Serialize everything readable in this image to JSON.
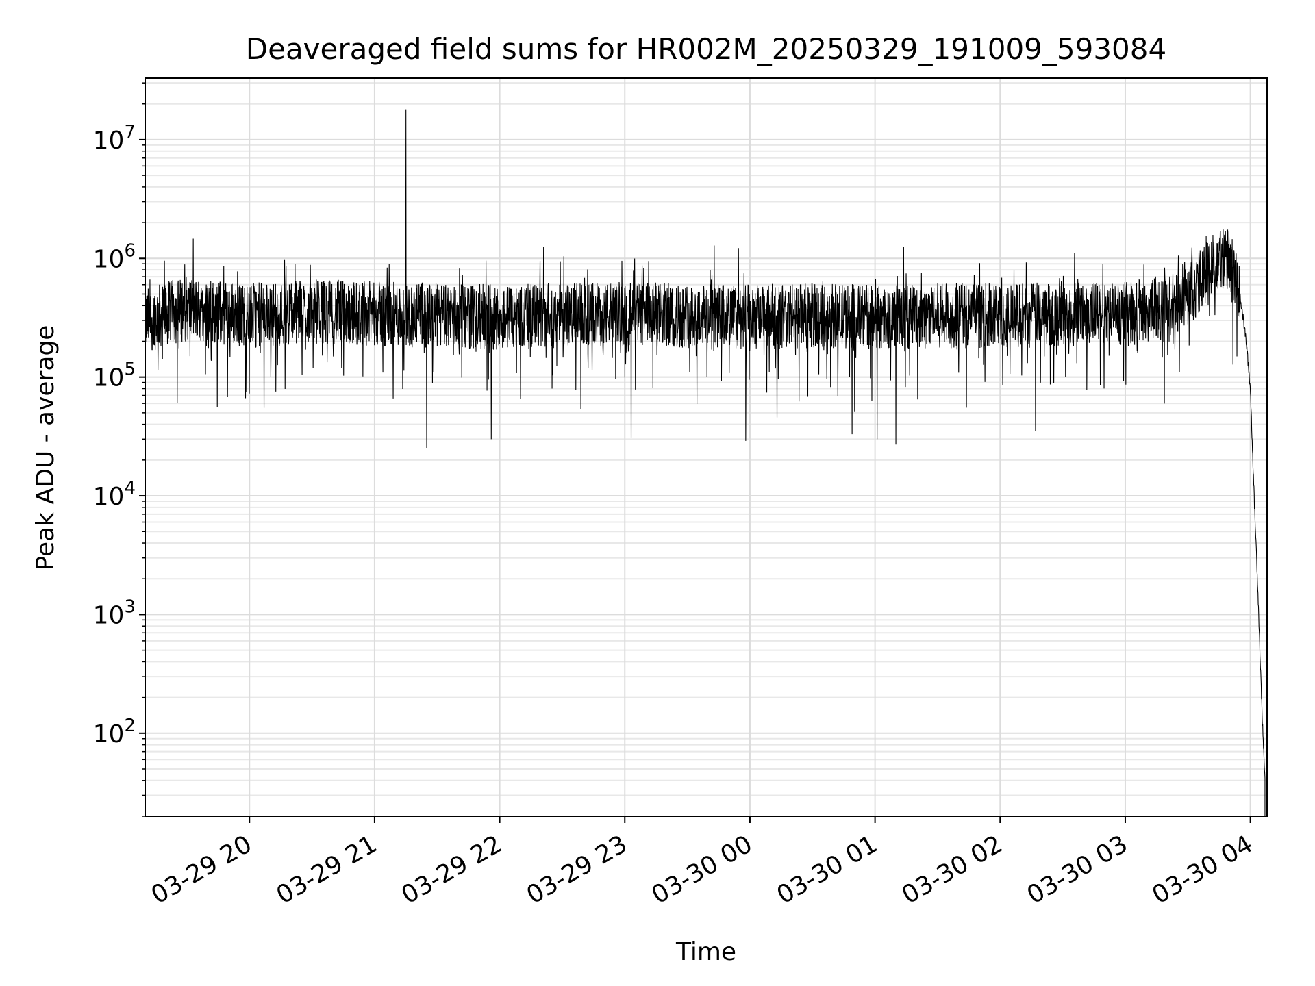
{
  "chart_data": {
    "type": "line",
    "title": "Deaveraged field sums for HR002M_20250329_191009_593084",
    "xlabel": "Time",
    "ylabel": "Peak ADU - average",
    "yscale": "log",
    "ylim": [
      20,
      33000000
    ],
    "xlim": [
      "03-29 19:10",
      "03-30 04:08"
    ],
    "grid": true,
    "x_ticks": [
      "03-29 20",
      "03-29 21",
      "03-29 22",
      "03-29 23",
      "03-30 00",
      "03-30 01",
      "03-30 02",
      "03-30 03",
      "03-30 04"
    ],
    "y_ticks": [
      {
        "base": "10",
        "exp": "2",
        "value": 100
      },
      {
        "base": "10",
        "exp": "3",
        "value": 1000
      },
      {
        "base": "10",
        "exp": "4",
        "value": 10000
      },
      {
        "base": "10",
        "exp": "5",
        "value": 100000
      },
      {
        "base": "10",
        "exp": "6",
        "value": 1000000
      },
      {
        "base": "10",
        "exp": "7",
        "value": 10000000
      }
    ],
    "series": [
      {
        "line_color": "#000000",
        "baseline_level": 350000,
        "spikes": [
          {
            "x": "03-29 21:15",
            "y": 18000000
          },
          {
            "x": "03-29 22:21",
            "y": 1250000
          },
          {
            "x": "03-30 03:47",
            "y": 1750000
          }
        ],
        "dips": [
          {
            "x": "03-29 20:07",
            "y": 55000
          },
          {
            "x": "03-29 21:25",
            "y": 25000
          },
          {
            "x": "03-29 21:56",
            "y": 30000
          },
          {
            "x": "03-29 23:03",
            "y": 31000
          },
          {
            "x": "03-29 23:58",
            "y": 29000
          },
          {
            "x": "03-30 00:49",
            "y": 33000
          },
          {
            "x": "03-30 01:01",
            "y": 30000
          },
          {
            "x": "03-30 01:10",
            "y": 27000
          },
          {
            "x": "03-30 02:17",
            "y": 35000
          }
        ],
        "points": [
          {
            "x": "03-29 19:10",
            "y": 300000
          },
          {
            "x": "03-29 19:30",
            "y": 380000
          },
          {
            "x": "03-29 20:00",
            "y": 330000
          },
          {
            "x": "03-29 20:30",
            "y": 360000
          },
          {
            "x": "03-29 21:00",
            "y": 340000
          },
          {
            "x": "03-29 21:30",
            "y": 330000
          },
          {
            "x": "03-29 22:00",
            "y": 320000
          },
          {
            "x": "03-29 22:30",
            "y": 330000
          },
          {
            "x": "03-29 23:00",
            "y": 340000
          },
          {
            "x": "03-29 23:30",
            "y": 330000
          },
          {
            "x": "03-30 00:00",
            "y": 320000
          },
          {
            "x": "03-30 00:30",
            "y": 330000
          },
          {
            "x": "03-30 01:00",
            "y": 320000
          },
          {
            "x": "03-30 01:30",
            "y": 330000
          },
          {
            "x": "03-30 02:00",
            "y": 330000
          },
          {
            "x": "03-30 02:30",
            "y": 340000
          },
          {
            "x": "03-30 03:00",
            "y": 340000
          },
          {
            "x": "03-30 03:20",
            "y": 380000
          },
          {
            "x": "03-30 03:35",
            "y": 600000
          },
          {
            "x": "03-30 03:45",
            "y": 1100000
          },
          {
            "x": "03-30 03:50",
            "y": 900000
          },
          {
            "x": "03-30 03:55",
            "y": 500000
          },
          {
            "x": "03-30 03:58",
            "y": 200000
          },
          {
            "x": "03-30 04:00",
            "y": 80000
          },
          {
            "x": "03-30 04:02",
            "y": 8000
          },
          {
            "x": "03-30 04:03",
            "y": 3000
          },
          {
            "x": "03-30 04:04",
            "y": 1000
          },
          {
            "x": "03-30 04:05",
            "y": 300
          },
          {
            "x": "03-30 04:06",
            "y": 100
          },
          {
            "x": "03-30 04:07",
            "y": 40
          }
        ]
      }
    ]
  }
}
